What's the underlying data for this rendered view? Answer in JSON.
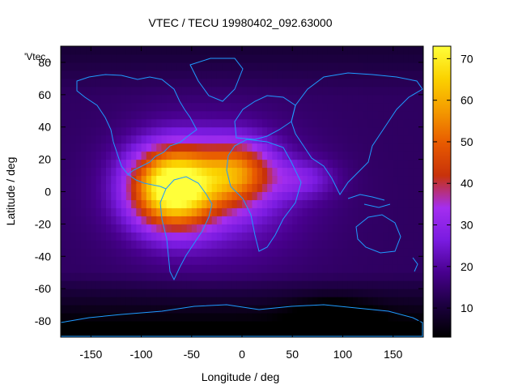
{
  "chart_data": {
    "type": "heatmap",
    "title": "VTEC / TECU 19980402_092.63000",
    "xlabel": "Longitude / deg",
    "ylabel": "Latitude / deg",
    "xlim": [
      -180,
      180
    ],
    "ylim": [
      -90,
      90
    ],
    "xticks": [
      -150,
      -100,
      -50,
      0,
      50,
      100,
      150
    ],
    "yticks": [
      -80,
      -60,
      -40,
      -20,
      0,
      20,
      40,
      60,
      80
    ],
    "xtick_labels": [
      "-150",
      "-100",
      "-50",
      "0",
      "50",
      "100",
      "150"
    ],
    "ytick_labels": [
      "-80",
      "-60",
      "-40",
      "-20",
      "0",
      "20",
      "40",
      "60",
      "80"
    ],
    "legend_key": "'Vtec_",
    "colorbar": {
      "min": 3,
      "max": 73,
      "ticks": [
        10,
        20,
        30,
        40,
        50,
        60,
        70
      ],
      "tick_labels": [
        "10",
        "20",
        "30",
        "40",
        "50",
        "60",
        "70"
      ],
      "palette": [
        "#000000",
        "#1c0040",
        "#48008e",
        "#7a1be0",
        "#a42ef0",
        "#c8320a",
        "#e85a00",
        "#f49a00",
        "#fbd200",
        "#ffff3a"
      ]
    },
    "field_description": "Vertical total electron content map with peak ~72 TECU near 5N, 68W; background ~10-20 TECU; lows ~5 TECU near 65S",
    "peaks": [
      {
        "lon": -68,
        "lat": 5,
        "value": 72
      },
      {
        "lon": -5,
        "lat": 12,
        "value": 48
      }
    ],
    "coastline_color": "#1f9bff"
  }
}
